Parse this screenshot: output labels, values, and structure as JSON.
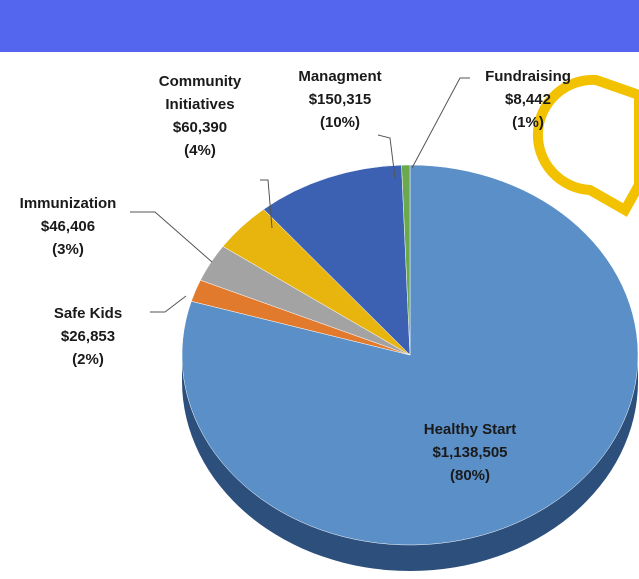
{
  "chart_data": {
    "type": "pie",
    "categories": [
      "Healthy Start",
      "Safe Kids",
      "Immunization",
      "Community Initiatives",
      "Managment",
      "Fundraising"
    ],
    "values": [
      1138505,
      26853,
      46406,
      60390,
      150315,
      8442
    ],
    "value_labels": [
      "$1,138,505",
      "$26,853",
      "$46,406",
      "$60,390",
      "$150,315",
      "$8,442"
    ],
    "percent_labels": [
      "(80%)",
      "(2%)",
      "(3%)",
      "(4%)",
      "(10%)",
      "(1%)"
    ],
    "colors": [
      "#5a8fc8",
      "#e17a2c",
      "#a3a3a3",
      "#e8b40e",
      "#3c60b2",
      "#6aaa4c"
    ]
  }
}
